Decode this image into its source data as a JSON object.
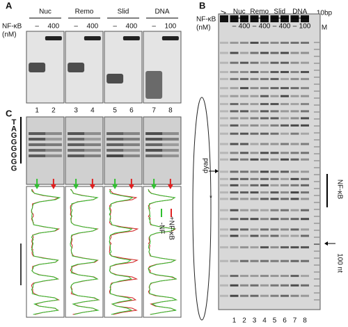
{
  "panel_a": {
    "label": "A",
    "groups": [
      "Nuc",
      "Remo",
      "Slid",
      "DNA"
    ],
    "nfkb": "NF-κB",
    "unit": "(nM)",
    "conditions": [
      "–",
      "400",
      "–",
      "400",
      "–",
      "400",
      "–",
      "100"
    ],
    "lanes": [
      "1",
      "2",
      "3",
      "4",
      "5",
      "6",
      "7",
      "8"
    ]
  },
  "panel_c": {
    "label": "C",
    "sequence": [
      "T",
      "A",
      "G",
      "G",
      "G",
      "G",
      "G",
      "G"
    ],
    "legend": [
      "-NF",
      "+NF-κB"
    ]
  },
  "panel_b": {
    "label": "B",
    "uv": "UV",
    "groups": [
      "Nuc",
      "Remo",
      "Slid",
      "DNA"
    ],
    "marker_top": "10bp",
    "marker_bottom": "M",
    "nfkb": "NF-κB",
    "unit": "(nM)",
    "conditions": [
      "–",
      "400",
      "–",
      "400",
      "–",
      "400",
      "–",
      "100"
    ],
    "lanes": [
      "1",
      "2",
      "3",
      "4",
      "5",
      "6",
      "7",
      "8"
    ],
    "dyad": "dyad",
    "region": "NF-κB",
    "size": "100 nt",
    "star": "*"
  }
}
